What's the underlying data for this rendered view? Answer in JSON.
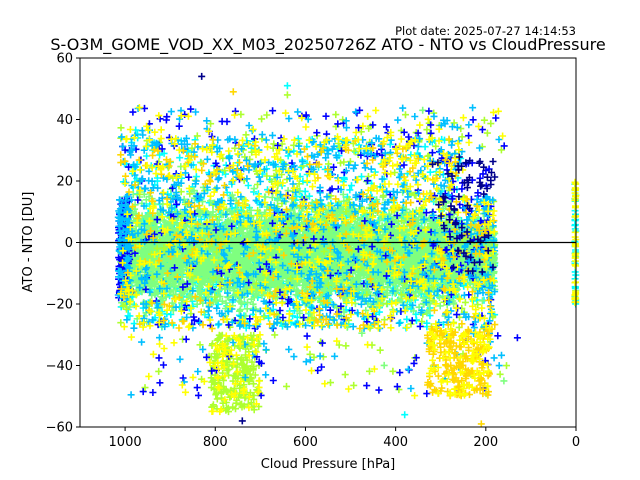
{
  "chart_data": {
    "type": "scatter",
    "title": "S-O3M_GOME_VOD_XX_M03_20250726Z ATO - NTO vs CloudPressure",
    "plot_date": "Plot date: 2025-07-27 14:14:53",
    "xlabel": "Cloud Pressure [hPa]",
    "ylabel": "ATO - NTO [DU]",
    "xlim": [
      1100,
      0
    ],
    "ylim": [
      -60,
      60
    ],
    "xticks": [
      1000,
      800,
      600,
      400,
      200,
      0
    ],
    "xtick_labels": [
      "1000",
      "800",
      "600",
      "400",
      "200",
      "0"
    ],
    "yticks": [
      -60,
      -40,
      -20,
      0,
      20,
      40,
      60
    ],
    "ytick_labels": [
      "−60",
      "−40",
      "−20",
      "0",
      "20",
      "40",
      "60"
    ],
    "reference_line_y": 0,
    "marker": "+",
    "grid": false,
    "colormap_colors": [
      "#00008b",
      "#0000ff",
      "#00bfff",
      "#00ffff",
      "#7fff7f",
      "#ffff00",
      "#ffd700",
      "#adff2f"
    ],
    "core_distribution": {
      "x_range": [
        1010,
        180
      ],
      "y_mean": -4,
      "y_core_halfwidth": 15,
      "y_envelope": [
        -38,
        40
      ]
    },
    "notable_points": [
      {
        "x": 830,
        "y": 54
      },
      {
        "x": 640,
        "y": 51
      },
      {
        "x": 760,
        "y": 49
      },
      {
        "x": 480,
        "y": 43
      },
      {
        "x": 340,
        "y": 43
      },
      {
        "x": 640,
        "y": 48
      },
      {
        "x": 270,
        "y": 25
      },
      {
        "x": 790,
        "y": -55
      },
      {
        "x": 740,
        "y": -58
      },
      {
        "x": 380,
        "y": -56
      },
      {
        "x": 210,
        "y": -59
      },
      {
        "x": 130,
        "y": -31
      },
      {
        "x": 160,
        "y": -45
      }
    ],
    "edge_cluster": {
      "x": 0,
      "y_range": [
        -20,
        20
      ]
    }
  }
}
